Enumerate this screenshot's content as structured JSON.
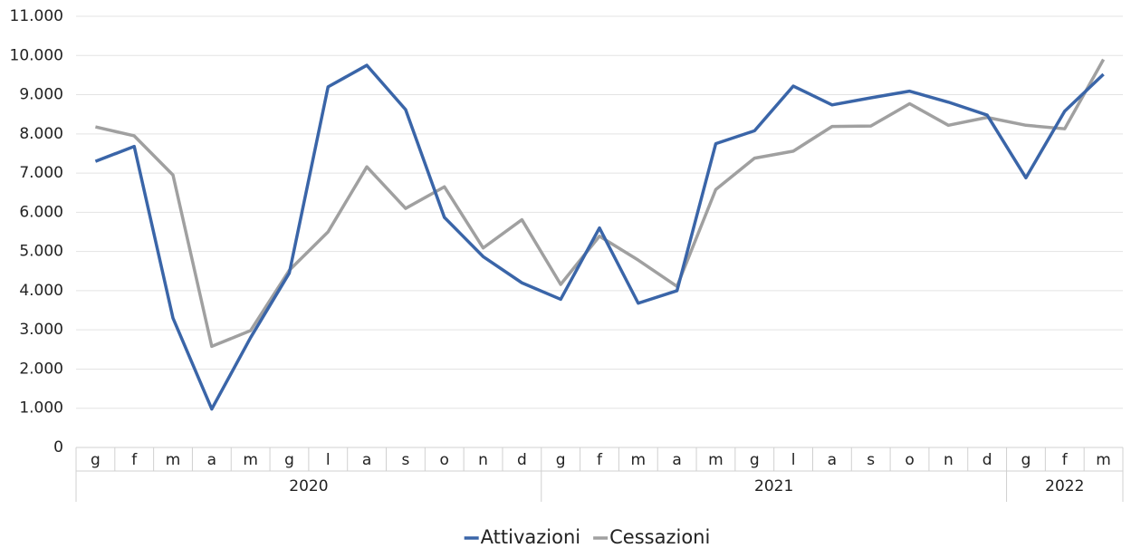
{
  "chart_data": {
    "type": "line",
    "categories": [
      "g",
      "f",
      "m",
      "a",
      "m",
      "g",
      "l",
      "a",
      "s",
      "o",
      "n",
      "d",
      "g",
      "f",
      "m",
      "a",
      "m",
      "g",
      "l",
      "a",
      "s",
      "o",
      "n",
      "d",
      "g",
      "f",
      "m"
    ],
    "categories_outer": [
      "2020",
      null,
      null,
      null,
      null,
      null,
      null,
      null,
      null,
      null,
      null,
      null,
      "2021",
      null,
      null,
      null,
      null,
      null,
      null,
      null,
      null,
      null,
      null,
      null,
      "2022",
      null,
      null
    ],
    "series": [
      {
        "name": "Attivazioni",
        "color": "#3a65a8",
        "values": [
          7300,
          7680,
          3300,
          980,
          2800,
          4450,
          9200,
          9750,
          8620,
          5870,
          4870,
          4200,
          3780,
          5600,
          3680,
          4000,
          7750,
          8080,
          9220,
          8740,
          8920,
          9090,
          8810,
          8480,
          6880,
          8580,
          9520
        ]
      },
      {
        "name": "Cessazioni",
        "color": "#a0a0a0",
        "values": [
          8180,
          7950,
          6950,
          2580,
          2980,
          4520,
          5500,
          7160,
          6100,
          6650,
          5090,
          5810,
          4160,
          5390,
          4780,
          4110,
          6580,
          7380,
          7560,
          8190,
          8200,
          8770,
          8220,
          8420,
          8220,
          8130,
          9900
        ]
      }
    ],
    "ylim": [
      0,
      11000
    ],
    "yticks": [
      0,
      {
        "value": 1000,
        "label": "1.000"
      },
      {
        "value": 2000,
        "label": "2.000"
      },
      {
        "value": 3000,
        "label": "3.000"
      },
      {
        "value": 4000,
        "label": "4.000"
      },
      {
        "value": 5000,
        "label": "5.000"
      },
      {
        "value": 6000,
        "label": "6.000"
      },
      {
        "value": 7000,
        "label": "7.000"
      },
      {
        "value": 8000,
        "label": "8.000"
      },
      {
        "value": 9000,
        "label": "9.000"
      },
      {
        "value": 10000,
        "label": "10.000"
      },
      {
        "value": 11000,
        "label": "11.000"
      }
    ],
    "grid": true,
    "legend": "bottom"
  }
}
